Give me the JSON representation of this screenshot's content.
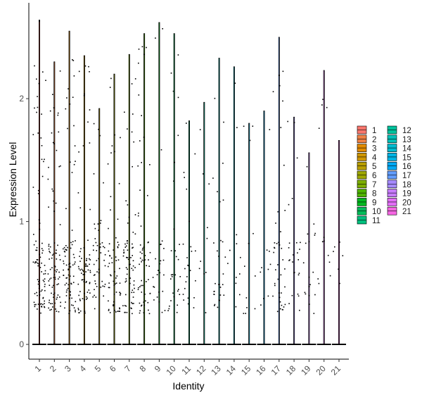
{
  "chart_data": {
    "type": "violin",
    "xlabel": "Identity",
    "ylabel": "Expression Level",
    "ylim": [
      -0.12,
      2.78
    ],
    "y_ticks": [
      0,
      1,
      2
    ],
    "categories": [
      "1",
      "2",
      "3",
      "4",
      "5",
      "6",
      "7",
      "8",
      "9",
      "10",
      "11",
      "12",
      "13",
      "14",
      "15",
      "16",
      "17",
      "18",
      "19",
      "20",
      "21"
    ],
    "max_values": [
      2.64,
      2.3,
      2.55,
      2.35,
      1.92,
      2.2,
      2.36,
      2.53,
      2.62,
      2.53,
      1.82,
      1.97,
      2.33,
      2.26,
      1.8,
      1.9,
      2.5,
      1.85,
      1.56,
      2.23,
      1.66
    ],
    "cell_density": [
      90,
      85,
      80,
      75,
      50,
      65,
      70,
      60,
      25,
      30,
      25,
      10,
      30,
      12,
      12,
      10,
      40,
      25,
      18,
      12,
      6
    ],
    "cluster_colors": [
      "#F8766D",
      "#EE8044",
      "#E18A00",
      "#CE9500",
      "#B89E00",
      "#9DA700",
      "#7CAE00",
      "#4FB400",
      "#00B81F",
      "#00BC59",
      "#00BF7D",
      "#00C19C",
      "#00C0B7",
      "#00BCD0",
      "#00B4E4",
      "#00A9F4",
      "#619CFF",
      "#A58AFF",
      "#C77CFF",
      "#E26EF7",
      "#F566E3"
    ],
    "legend": [
      "1",
      "2",
      "3",
      "4",
      "5",
      "6",
      "7",
      "8",
      "9",
      "10",
      "11",
      "12",
      "13",
      "14",
      "15",
      "16",
      "17",
      "18",
      "19",
      "20",
      "21"
    ],
    "legend_placement": "right",
    "grid": false
  }
}
